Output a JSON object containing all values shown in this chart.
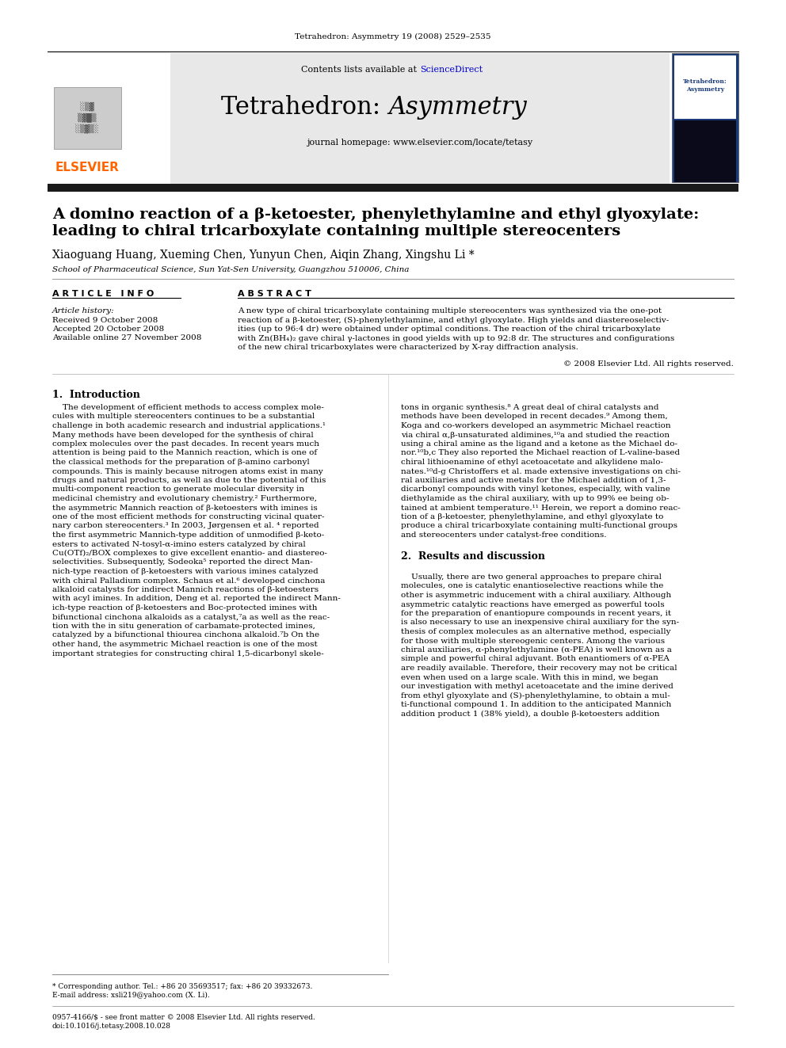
{
  "journal_header": "Tetrahedron: Asymmetry 19 (2008) 2529–2535",
  "sciencedirect_color": "#0000CC",
  "journal_homepage": "journal homepage: www.elsevier.com/locate/tetasy",
  "header_bg": "#E8E8E8",
  "dark_bar_color": "#1a1a1a",
  "authors": "Xiaoguang Huang, Xueming Chen, Yunyun Chen, Aiqin Zhang, Xingshu Li *",
  "affiliation": "School of Pharmaceutical Science, Sun Yat-Sen University, Guangzhou 510006, China",
  "section_article_info": "A R T I C L E   I N F O",
  "section_abstract": "A B S T R A C T",
  "article_history_label": "Article history:",
  "received": "Received 9 October 2008",
  "accepted": "Accepted 20 October 2008",
  "available": "Available online 27 November 2008",
  "copyright": "© 2008 Elsevier Ltd. All rights reserved.",
  "intro_heading": "1.  Introduction",
  "results_heading": "2.  Results and discussion",
  "footer_text1": "* Corresponding author. Tel.: +86 20 35693517; fax: +86 20 39332673.",
  "footer_text2": "E-mail address: xsli219@yahoo.com (X. Li).",
  "footer_text3": "0957-4166/$ - see front matter © 2008 Elsevier Ltd. All rights reserved.",
  "footer_text4": "doi:10.1016/j.tetasy.2008.10.028",
  "elsevier_color": "#FF6600",
  "bg_color": "#FFFFFF",
  "abstract_lines": [
    "A new type of chiral tricarboxylate containing multiple stereocenters was synthesized via the one-pot",
    "reaction of a β-ketoester, (S)-phenylethylamine, and ethyl glyoxylate. High yields and diastereoselectiv-",
    "ities (up to 96:4 dr) were obtained under optimal conditions. The reaction of the chiral tricarboxylate",
    "with Zn(BH₄)₂ gave chiral γ-lactones in good yields with up to 92:8 dr. The structures and configurations",
    "of the new chiral tricarboxylates were characterized by X-ray diffraction analysis."
  ],
  "intro_col1_lines": [
    "    The development of efficient methods to access complex mole-",
    "cules with multiple stereocenters continues to be a substantial",
    "challenge in both academic research and industrial applications.¹",
    "Many methods have been developed for the synthesis of chiral",
    "complex molecules over the past decades. In recent years much",
    "attention is being paid to the Mannich reaction, which is one of",
    "the classical methods for the preparation of β-amino carbonyl",
    "compounds. This is mainly because nitrogen atoms exist in many",
    "drugs and natural products, as well as due to the potential of this",
    "multi-component reaction to generate molecular diversity in",
    "medicinal chemistry and evolutionary chemistry.² Furthermore,",
    "the asymmetric Mannich reaction of β-ketoesters with imines is",
    "one of the most efficient methods for constructing vicinal quater-",
    "nary carbon stereocenters.³ In 2003, Jørgensen et al. ⁴ reported",
    "the first asymmetric Mannich-type addition of unmodified β-keto-",
    "esters to activated N-tosyl-α-imino esters catalyzed by chiral",
    "Cu(OTf)₂/BOX complexes to give excellent enantio- and diastereo-",
    "selectivities. Subsequently, Sodeoka⁵ reported the direct Man-",
    "nich-type reaction of β-ketoesters with various imines catalyzed",
    "with chiral Palladium complex. Schaus et al.⁶ developed cinchona",
    "alkaloid catalysts for indirect Mannich reactions of β-ketoesters",
    "with acyl imines. In addition, Deng et al. reported the indirect Mann-",
    "ich-type reaction of β-ketoesters and Boc-protected imines with",
    "bifunctional cinchona alkaloids as a catalyst,⁷a as well as the reac-",
    "tion with the in situ generation of carbamate-protected imines,",
    "catalyzed by a bifunctional thiourea cinchona alkaloid.⁷b On the",
    "other hand, the asymmetric Michael reaction is one of the most",
    "important strategies for constructing chiral 1,5-dicarbonyl skele-"
  ],
  "intro_col2_lines": [
    "tons in organic synthesis.⁸ A great deal of chiral catalysts and",
    "methods have been developed in recent decades.⁹ Among them,",
    "Koga and co-workers developed an asymmetric Michael reaction",
    "via chiral α,β-unsaturated aldimines,¹⁰a and studied the reaction",
    "using a chiral amine as the ligand and a ketone as the Michael do-",
    "nor.¹⁰b,c They also reported the Michael reaction of L-valine-based",
    "chiral lithioenamine of ethyl acetoacetate and alkylidene malo-",
    "nates.¹⁰d-g Christoffers et al. made extensive investigations on chi-",
    "ral auxiliaries and active metals for the Michael addition of 1,3-",
    "dicarbonyl compounds with vinyl ketones, especially, with valine",
    "diethylamide as the chiral auxiliary, with up to 99% ee being ob-",
    "tained at ambient temperature.¹¹ Herein, we report a domino reac-",
    "tion of a β-ketoester, phenylethylamine, and ethyl glyoxylate to",
    "produce a chiral tricarboxylate containing multi-functional groups",
    "and stereocenters under catalyst-free conditions."
  ],
  "results_col2_lines": [
    "",
    "    Usually, there are two general approaches to prepare chiral",
    "molecules, one is catalytic enantioselective reactions while the",
    "other is asymmetric inducement with a chiral auxiliary. Although",
    "asymmetric catalytic reactions have emerged as powerful tools",
    "for the preparation of enantiopure compounds in recent years, it",
    "is also necessary to use an inexpensive chiral auxiliary for the syn-",
    "thesis of complex molecules as an alternative method, especially",
    "for those with multiple stereogenic centers. Among the various",
    "chiral auxiliaries, α-phenylethylamine (α-PEA) is well known as a",
    "simple and powerful chiral adjuvant. Both enantiomers of α-PEA",
    "are readily available. Therefore, their recovery may not be critical",
    "even when used on a large scale. With this in mind, we began",
    "our investigation with methyl acetoacetate and the imine derived",
    "from ethyl glyoxylate and (S)-phenylethylamine, to obtain a mul-",
    "ti-functional compound 1. In addition to the anticipated Mannich",
    "addition product 1 (38% yield), a double β-ketoesters addition"
  ]
}
